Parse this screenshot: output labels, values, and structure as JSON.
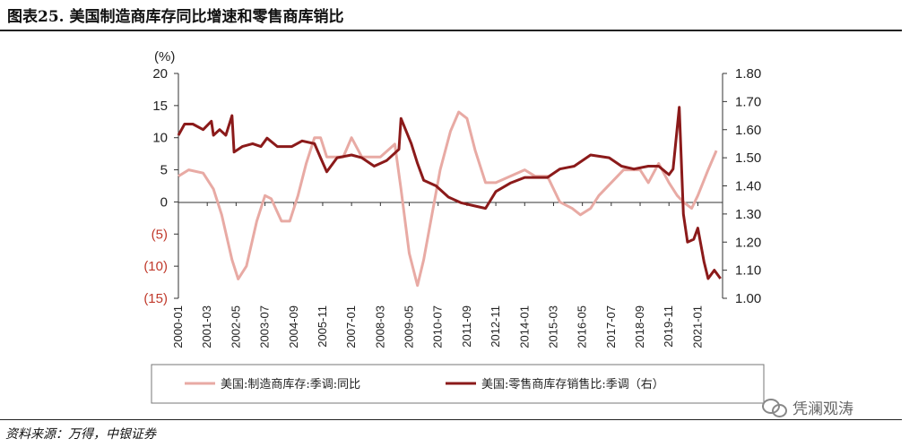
{
  "header": {
    "title": "图表25. 美国制造商库存同比增速和零售商库销比"
  },
  "footer": {
    "source": "资料来源：万得，中银证券",
    "watermark": "凭澜观涛"
  },
  "chart_data": {
    "type": "line",
    "left_axis": {
      "unit_label": "(%)",
      "ylim": [
        -15,
        20
      ],
      "ticks": [
        20,
        15,
        10,
        5,
        0,
        -5,
        -10,
        -15
      ],
      "tick_labels": [
        "20",
        "15",
        "10",
        "5",
        "0",
        "(5)",
        "(10)",
        "(15)"
      ],
      "negative_color": "#c0392b"
    },
    "right_axis": {
      "ylim": [
        1.0,
        1.8
      ],
      "ticks": [
        1.8,
        1.7,
        1.6,
        1.5,
        1.4,
        1.3,
        1.2,
        1.1,
        1.0
      ],
      "tick_labels": [
        "1.80",
        "1.70",
        "1.60",
        "1.50",
        "1.40",
        "1.30",
        "1.20",
        "1.10",
        "1.00"
      ]
    },
    "x_range": [
      "2000-01",
      "2022-01"
    ],
    "x_tick_labels": [
      "2000-01",
      "2001-03",
      "2002-05",
      "2003-07",
      "2004-09",
      "2005-11",
      "2007-01",
      "2008-03",
      "2009-05",
      "2010-07",
      "2011-09",
      "2012-11",
      "2014-01",
      "2015-03",
      "2016-05",
      "2017-07",
      "2018-09",
      "2019-11",
      "2021-01"
    ],
    "series": [
      {
        "name": "美国:制造商库存:季调:同比",
        "axis": "left",
        "color": "#e8aaa4",
        "points": [
          [
            "2000-01",
            4
          ],
          [
            "2000-06",
            5
          ],
          [
            "2001-01",
            4.5
          ],
          [
            "2001-06",
            2
          ],
          [
            "2001-10",
            -2
          ],
          [
            "2002-03",
            -9
          ],
          [
            "2002-06",
            -12
          ],
          [
            "2002-10",
            -10
          ],
          [
            "2003-03",
            -3
          ],
          [
            "2003-07",
            1
          ],
          [
            "2003-10",
            0.5
          ],
          [
            "2004-03",
            -3
          ],
          [
            "2004-07",
            -3
          ],
          [
            "2004-11",
            1
          ],
          [
            "2005-03",
            6
          ],
          [
            "2005-07",
            10
          ],
          [
            "2005-10",
            10
          ],
          [
            "2006-01",
            7
          ],
          [
            "2006-06",
            7
          ],
          [
            "2006-09",
            7
          ],
          [
            "2007-01",
            10
          ],
          [
            "2007-06",
            7
          ],
          [
            "2007-10",
            7
          ],
          [
            "2008-03",
            7
          ],
          [
            "2008-10",
            9
          ],
          [
            "2009-01",
            2
          ],
          [
            "2009-05",
            -8
          ],
          [
            "2009-09",
            -13
          ],
          [
            "2009-12",
            -9
          ],
          [
            "2010-04",
            -2
          ],
          [
            "2010-08",
            5
          ],
          [
            "2011-01",
            11
          ],
          [
            "2011-05",
            14
          ],
          [
            "2011-09",
            13
          ],
          [
            "2012-01",
            8
          ],
          [
            "2012-06",
            3
          ],
          [
            "2012-11",
            3
          ],
          [
            "2013-06",
            4
          ],
          [
            "2014-01",
            5
          ],
          [
            "2014-06",
            4
          ],
          [
            "2014-12",
            4
          ],
          [
            "2015-06",
            0
          ],
          [
            "2015-12",
            -1
          ],
          [
            "2016-04",
            -2
          ],
          [
            "2016-09",
            -1
          ],
          [
            "2017-01",
            1
          ],
          [
            "2017-07",
            3
          ],
          [
            "2018-01",
            5
          ],
          [
            "2018-09",
            5
          ],
          [
            "2019-01",
            3
          ],
          [
            "2019-06",
            6
          ],
          [
            "2019-11",
            3
          ],
          [
            "2020-03",
            1
          ],
          [
            "2020-06",
            0
          ],
          [
            "2020-10",
            -1
          ],
          [
            "2021-01",
            1
          ],
          [
            "2021-06",
            5
          ],
          [
            "2021-10",
            8
          ]
        ]
      },
      {
        "name": "美国:零售商库存销售比:季调（右）",
        "axis": "right",
        "color": "#8b1a1a",
        "points": [
          [
            "2000-01",
            1.58
          ],
          [
            "2000-04",
            1.62
          ],
          [
            "2000-08",
            1.62
          ],
          [
            "2001-01",
            1.6
          ],
          [
            "2001-05",
            1.63
          ],
          [
            "2001-06",
            1.58
          ],
          [
            "2001-09",
            1.6
          ],
          [
            "2001-12",
            1.58
          ],
          [
            "2002-03",
            1.65
          ],
          [
            "2002-04",
            1.52
          ],
          [
            "2002-08",
            1.54
          ],
          [
            "2003-01",
            1.55
          ],
          [
            "2003-05",
            1.54
          ],
          [
            "2003-08",
            1.57
          ],
          [
            "2004-01",
            1.54
          ],
          [
            "2004-08",
            1.54
          ],
          [
            "2005-01",
            1.56
          ],
          [
            "2005-07",
            1.55
          ],
          [
            "2005-10",
            1.5
          ],
          [
            "2006-01",
            1.45
          ],
          [
            "2006-06",
            1.5
          ],
          [
            "2007-01",
            1.51
          ],
          [
            "2007-06",
            1.5
          ],
          [
            "2007-12",
            1.47
          ],
          [
            "2008-06",
            1.49
          ],
          [
            "2008-12",
            1.53
          ],
          [
            "2009-01",
            1.64
          ],
          [
            "2009-06",
            1.55
          ],
          [
            "2009-09",
            1.48
          ],
          [
            "2009-12",
            1.42
          ],
          [
            "2010-06",
            1.4
          ],
          [
            "2010-12",
            1.36
          ],
          [
            "2011-06",
            1.34
          ],
          [
            "2011-12",
            1.33
          ],
          [
            "2012-06",
            1.32
          ],
          [
            "2012-11",
            1.38
          ],
          [
            "2013-06",
            1.41
          ],
          [
            "2014-01",
            1.43
          ],
          [
            "2014-06",
            1.43
          ],
          [
            "2014-12",
            1.43
          ],
          [
            "2015-06",
            1.46
          ],
          [
            "2016-01",
            1.47
          ],
          [
            "2016-09",
            1.51
          ],
          [
            "2017-06",
            1.5
          ],
          [
            "2017-12",
            1.47
          ],
          [
            "2018-06",
            1.46
          ],
          [
            "2019-01",
            1.47
          ],
          [
            "2019-06",
            1.47
          ],
          [
            "2019-11",
            1.44
          ],
          [
            "2020-01",
            1.46
          ],
          [
            "2020-04",
            1.68
          ],
          [
            "2020-06",
            1.3
          ],
          [
            "2020-08",
            1.2
          ],
          [
            "2020-11",
            1.21
          ],
          [
            "2021-01",
            1.25
          ],
          [
            "2021-04",
            1.13
          ],
          [
            "2021-06",
            1.07
          ],
          [
            "2021-09",
            1.1
          ],
          [
            "2021-12",
            1.07
          ]
        ]
      }
    ]
  }
}
